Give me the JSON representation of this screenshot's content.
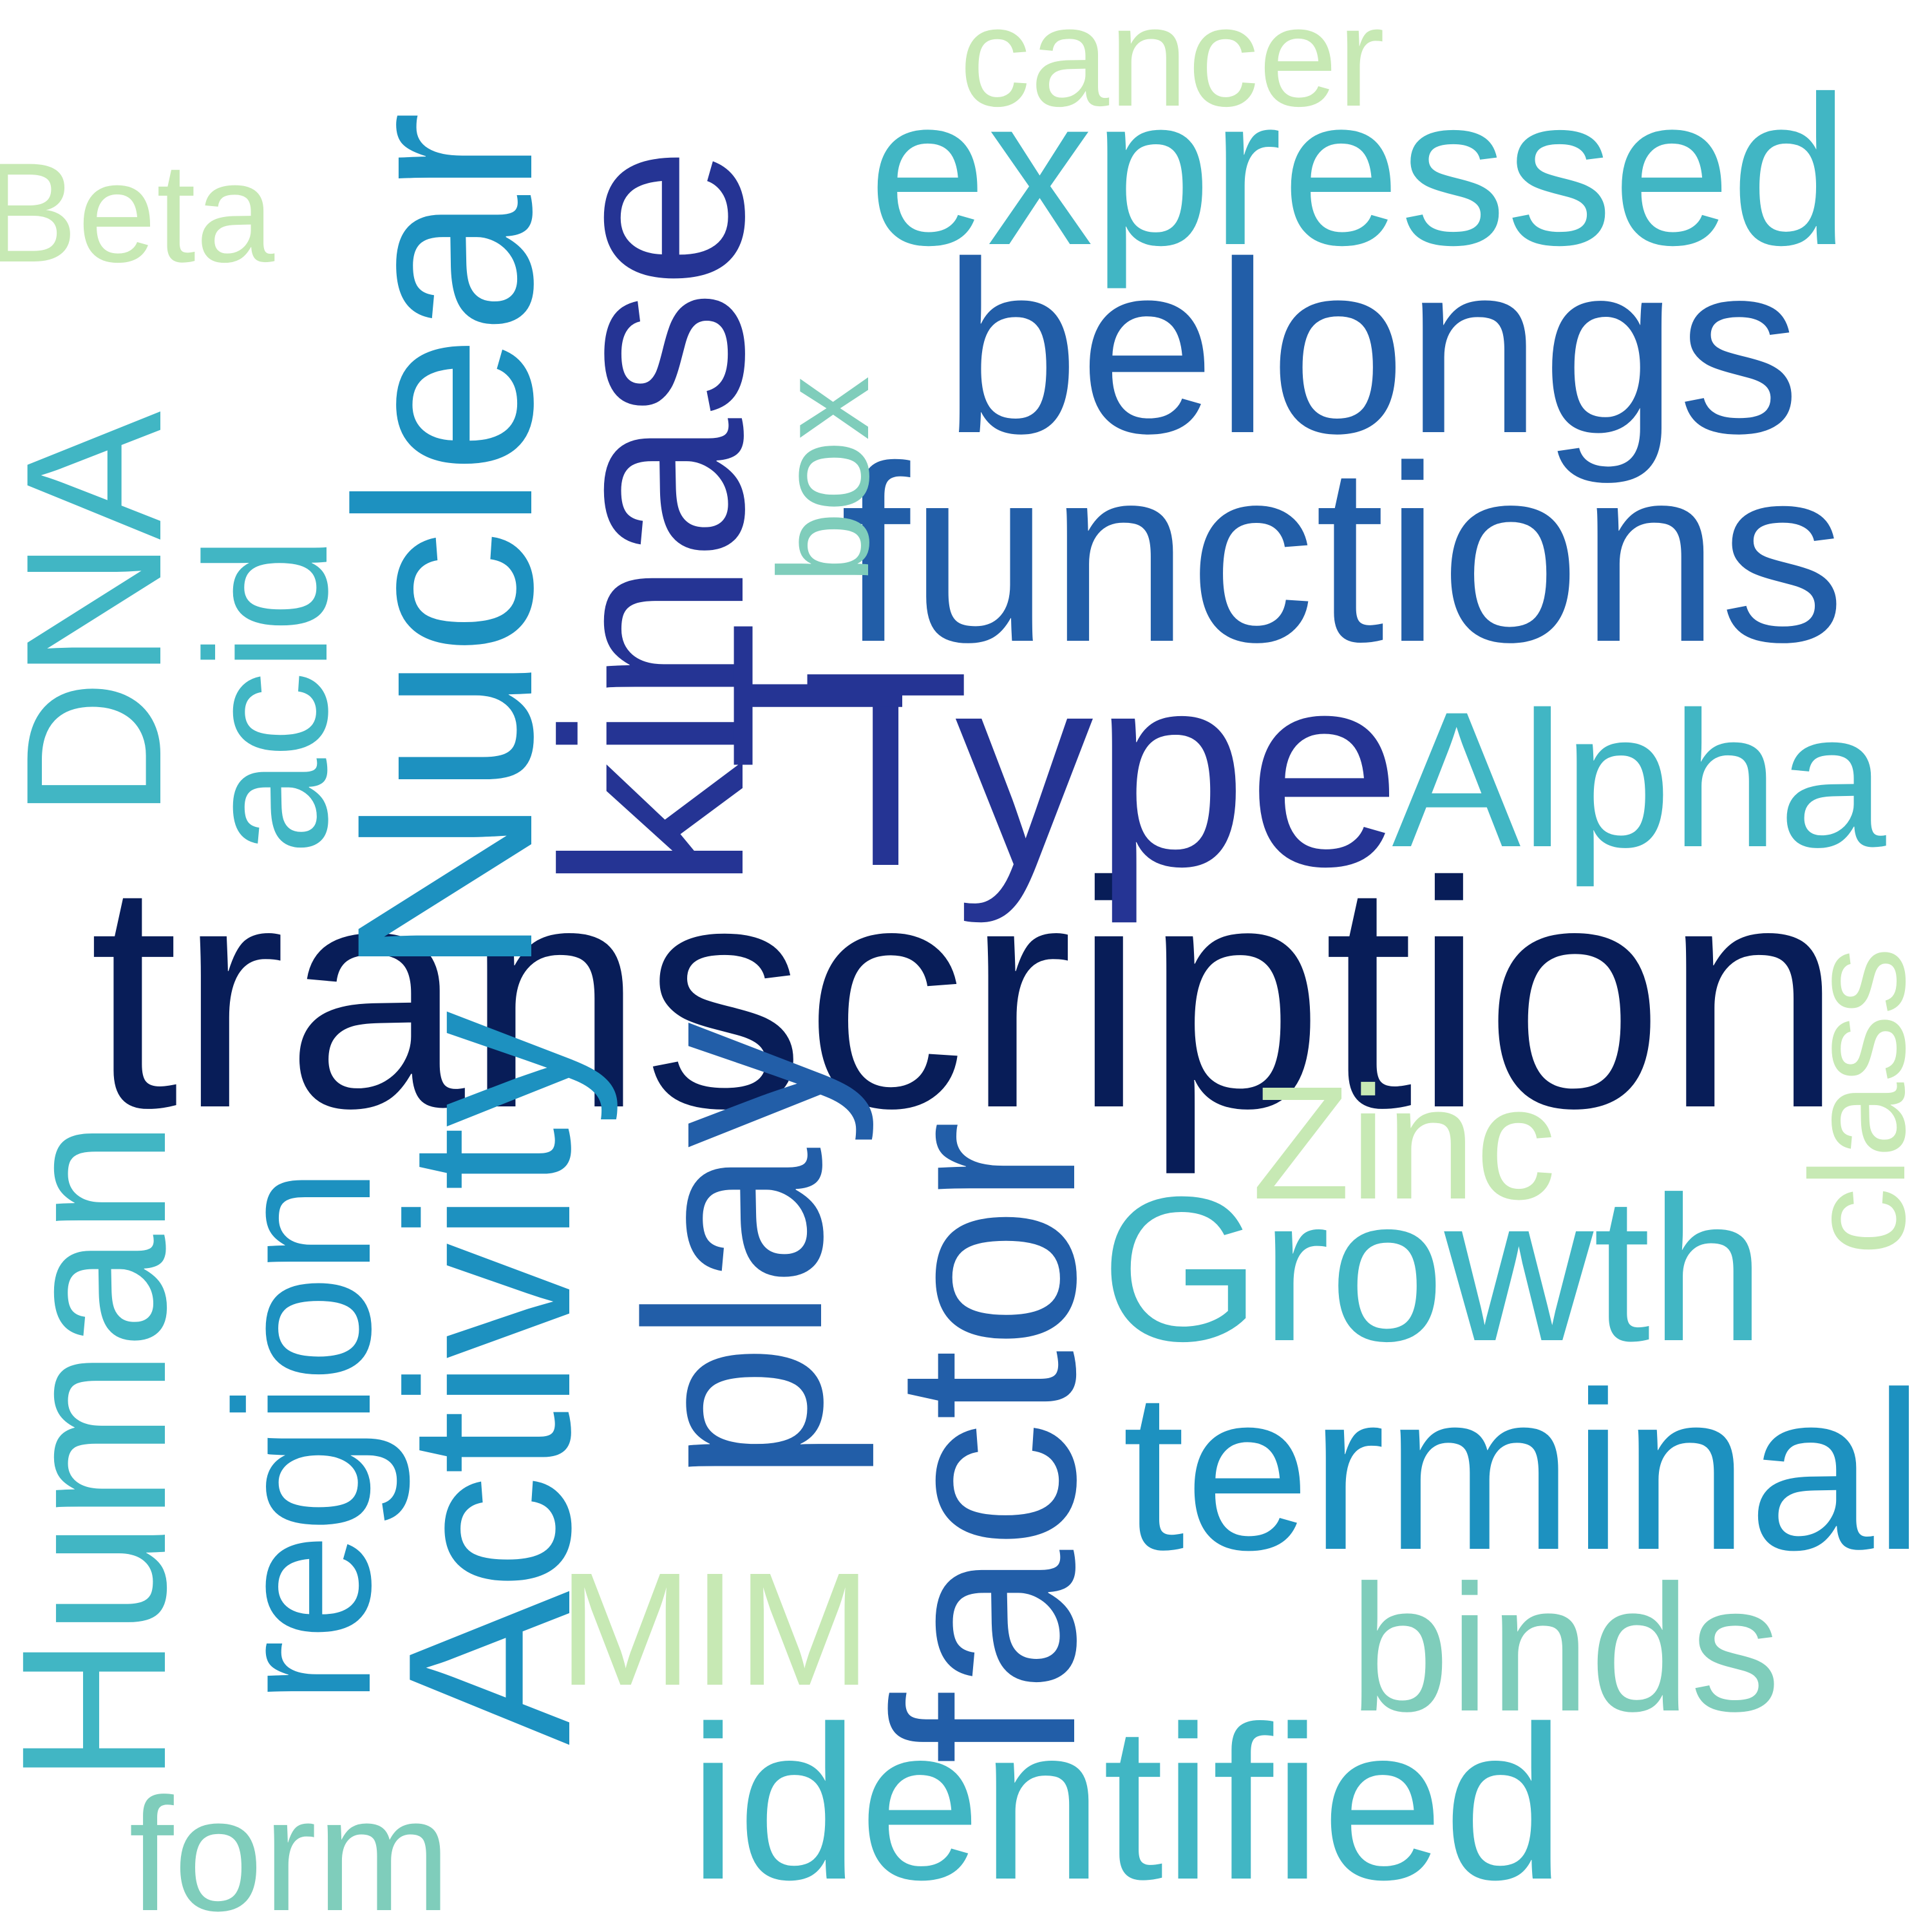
{
  "words": {
    "transcription": {
      "text": "transcription",
      "color": "#081d58"
    },
    "type": {
      "text": "Type",
      "color": "#253494"
    },
    "kinase": {
      "text": "kinase",
      "color": "#253494"
    },
    "T": {
      "text": "T",
      "color": "#253494"
    },
    "factor": {
      "text": "factor",
      "color": "#225ea8"
    },
    "functions": {
      "text": "functions",
      "color": "#225ea8"
    },
    "belongs": {
      "text": "belongs",
      "color": "#225ea8"
    },
    "play": {
      "text": "play",
      "color": "#225ea8"
    },
    "nuclear": {
      "text": "Nuclear",
      "color": "#1d91c0"
    },
    "activity": {
      "text": "Activity",
      "color": "#1d91c0"
    },
    "region": {
      "text": "region",
      "color": "#1d91c0"
    },
    "terminal": {
      "text": "terminal",
      "color": "#1d91c0"
    },
    "growth": {
      "text": "Growth",
      "color": "#41b6c4"
    },
    "identified": {
      "text": "identified",
      "color": "#41b6c4"
    },
    "expressed": {
      "text": "expressed",
      "color": "#41b6c4"
    },
    "human": {
      "text": "Human",
      "color": "#41b6c4"
    },
    "dna": {
      "text": "DNA",
      "color": "#41b6c4"
    },
    "acid": {
      "text": "acid",
      "color": "#41b6c4"
    },
    "alpha": {
      "text": "Alpha",
      "color": "#41b6c4"
    },
    "binds": {
      "text": "binds",
      "color": "#7fcdbb"
    },
    "form": {
      "text": "form",
      "color": "#7fcdbb"
    },
    "box": {
      "text": "box",
      "color": "#7fcdbb"
    },
    "zinc": {
      "text": "Zinc",
      "color": "#c7e9b4"
    },
    "mim": {
      "text": "MIM",
      "color": "#c7e9b4"
    },
    "cancer": {
      "text": "cancer",
      "color": "#c7e9b4"
    },
    "beta": {
      "text": "Beta",
      "color": "#c7e9b4"
    },
    "class": {
      "text": "class",
      "color": "#c7e9b4"
    }
  }
}
